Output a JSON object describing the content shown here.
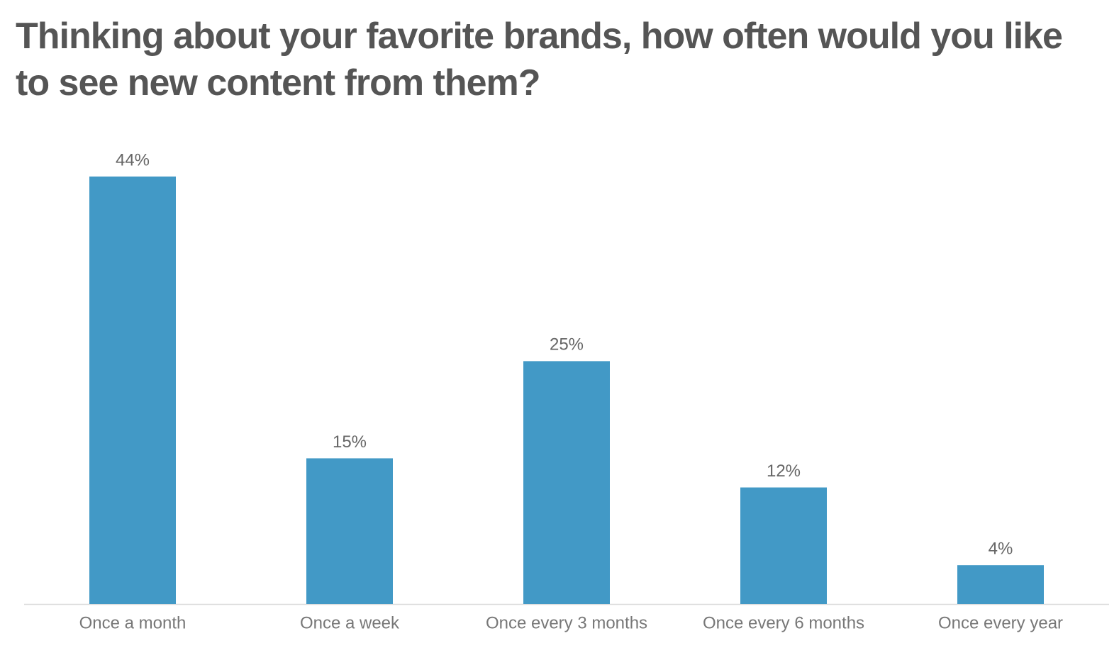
{
  "chart_data": {
    "type": "bar",
    "title": "Thinking about your favorite brands, how often would you like to see new content from them?",
    "categories": [
      "Once a month",
      "Once a week",
      "Once every 3 months",
      "Once every 6 months",
      "Once every year"
    ],
    "values": [
      44,
      15,
      25,
      12,
      4
    ],
    "value_labels": [
      "44%",
      "15%",
      "25%",
      "12%",
      "4%"
    ],
    "color": "#4299c6"
  }
}
